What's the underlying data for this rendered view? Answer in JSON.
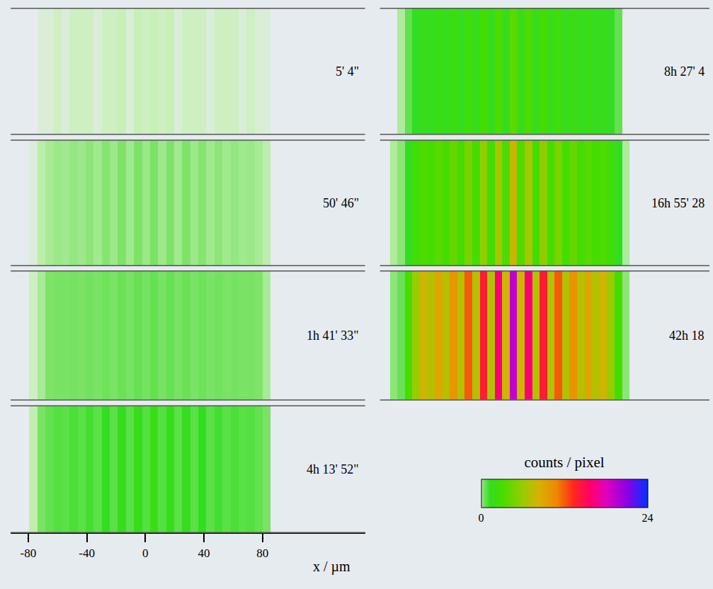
{
  "chart_data": {
    "type": "heatmap",
    "xlabel": "x / µm",
    "xlim": [
      -92,
      150
    ],
    "xticks": [
      -80,
      -40,
      0,
      40,
      80
    ],
    "x": [
      -87.5,
      -82,
      -76.5,
      -71,
      -65.5,
      -60,
      -54.5,
      -49,
      -43.5,
      -38,
      -32.5,
      -27,
      -21.5,
      -16,
      -10.5,
      -5,
      0.5,
      6,
      11.5,
      17,
      22.5,
      28,
      33.5,
      39,
      44.5,
      50,
      55.5,
      61,
      66.5,
      72,
      77.5,
      83,
      88.5
    ],
    "panels": [
      {
        "label": "5' 4\"",
        "cells": [
          0,
          0,
          0,
          0.01,
          0.01,
          0.02,
          0.01,
          0.02,
          0.02,
          0.02,
          0.01,
          0.02,
          0.02,
          0.03,
          0.01,
          0.03,
          0.02,
          0.03,
          0.02,
          0.03,
          0.01,
          0.02,
          0.02,
          0.02,
          0.01,
          0.02,
          0.02,
          0.02,
          0.01,
          0.02,
          0.01,
          0.01,
          0
        ]
      },
      {
        "label": "50' 46\"",
        "cells": [
          0,
          0,
          0.01,
          0.06,
          0.12,
          0.16,
          0.14,
          0.18,
          0.15,
          0.2,
          0.14,
          0.22,
          0.15,
          0.25,
          0.14,
          0.28,
          0.16,
          0.3,
          0.15,
          0.27,
          0.14,
          0.24,
          0.15,
          0.22,
          0.14,
          0.2,
          0.14,
          0.18,
          0.14,
          0.16,
          0.12,
          0.06,
          0
        ]
      },
      {
        "label": "1h 41' 33\"",
        "cells": [
          0,
          0,
          0.02,
          0.12,
          0.24,
          0.32,
          0.3,
          0.36,
          0.3,
          0.4,
          0.3,
          0.46,
          0.3,
          0.5,
          0.32,
          0.55,
          0.35,
          0.6,
          0.34,
          0.55,
          0.32,
          0.5,
          0.3,
          0.46,
          0.3,
          0.4,
          0.3,
          0.36,
          0.3,
          0.32,
          0.24,
          0.12,
          0
        ]
      },
      {
        "label": "4h 13' 52\"",
        "cells": [
          0,
          0,
          0.05,
          0.3,
          0.6,
          0.8,
          0.7,
          0.9,
          0.7,
          1,
          0.7,
          1.2,
          0.7,
          1.4,
          0.7,
          1.6,
          0.8,
          1.9,
          0.8,
          1.6,
          0.7,
          1.4,
          0.7,
          1.2,
          0.7,
          1,
          0.7,
          0.9,
          0.7,
          0.8,
          0.6,
          0.3,
          0
        ]
      },
      {
        "label": "8h 27' 4",
        "cells": [
          0,
          0,
          0.1,
          0.6,
          1.2,
          1.6,
          1.4,
          1.8,
          1.4,
          2,
          1.4,
          2.4,
          1.5,
          2.8,
          1.4,
          3.2,
          1.6,
          3.8,
          1.6,
          3.2,
          1.4,
          2.8,
          1.5,
          2.4,
          1.4,
          2,
          1.4,
          1.8,
          1.4,
          1.6,
          1.2,
          0.6,
          0
        ]
      },
      {
        "label": "16h 55' 28",
        "cells": [
          0,
          0.1,
          0.2,
          1.2,
          2.5,
          3.2,
          2.8,
          3.6,
          2.9,
          4.1,
          2.8,
          4.8,
          2.9,
          5.7,
          2.8,
          6.5,
          3.2,
          7.6,
          3.3,
          6.4,
          2.8,
          5.6,
          2.9,
          4.8,
          2.8,
          4.1,
          2.8,
          3.6,
          2.8,
          3.2,
          2.4,
          1.2,
          0.1
        ]
      },
      {
        "label": "42h 18",
        "cells": [
          0,
          0.2,
          0.5,
          3,
          6,
          8,
          7,
          9,
          7,
          10,
          7,
          12,
          7,
          14,
          7,
          16,
          8,
          19,
          8,
          16,
          7,
          14,
          7,
          12,
          7,
          10,
          7,
          9,
          7,
          8,
          6,
          3,
          0.2
        ]
      }
    ],
    "colorbar": {
      "title": "counts / pixel",
      "range": [
        0,
        24
      ],
      "ticks": [
        0,
        24
      ]
    }
  }
}
